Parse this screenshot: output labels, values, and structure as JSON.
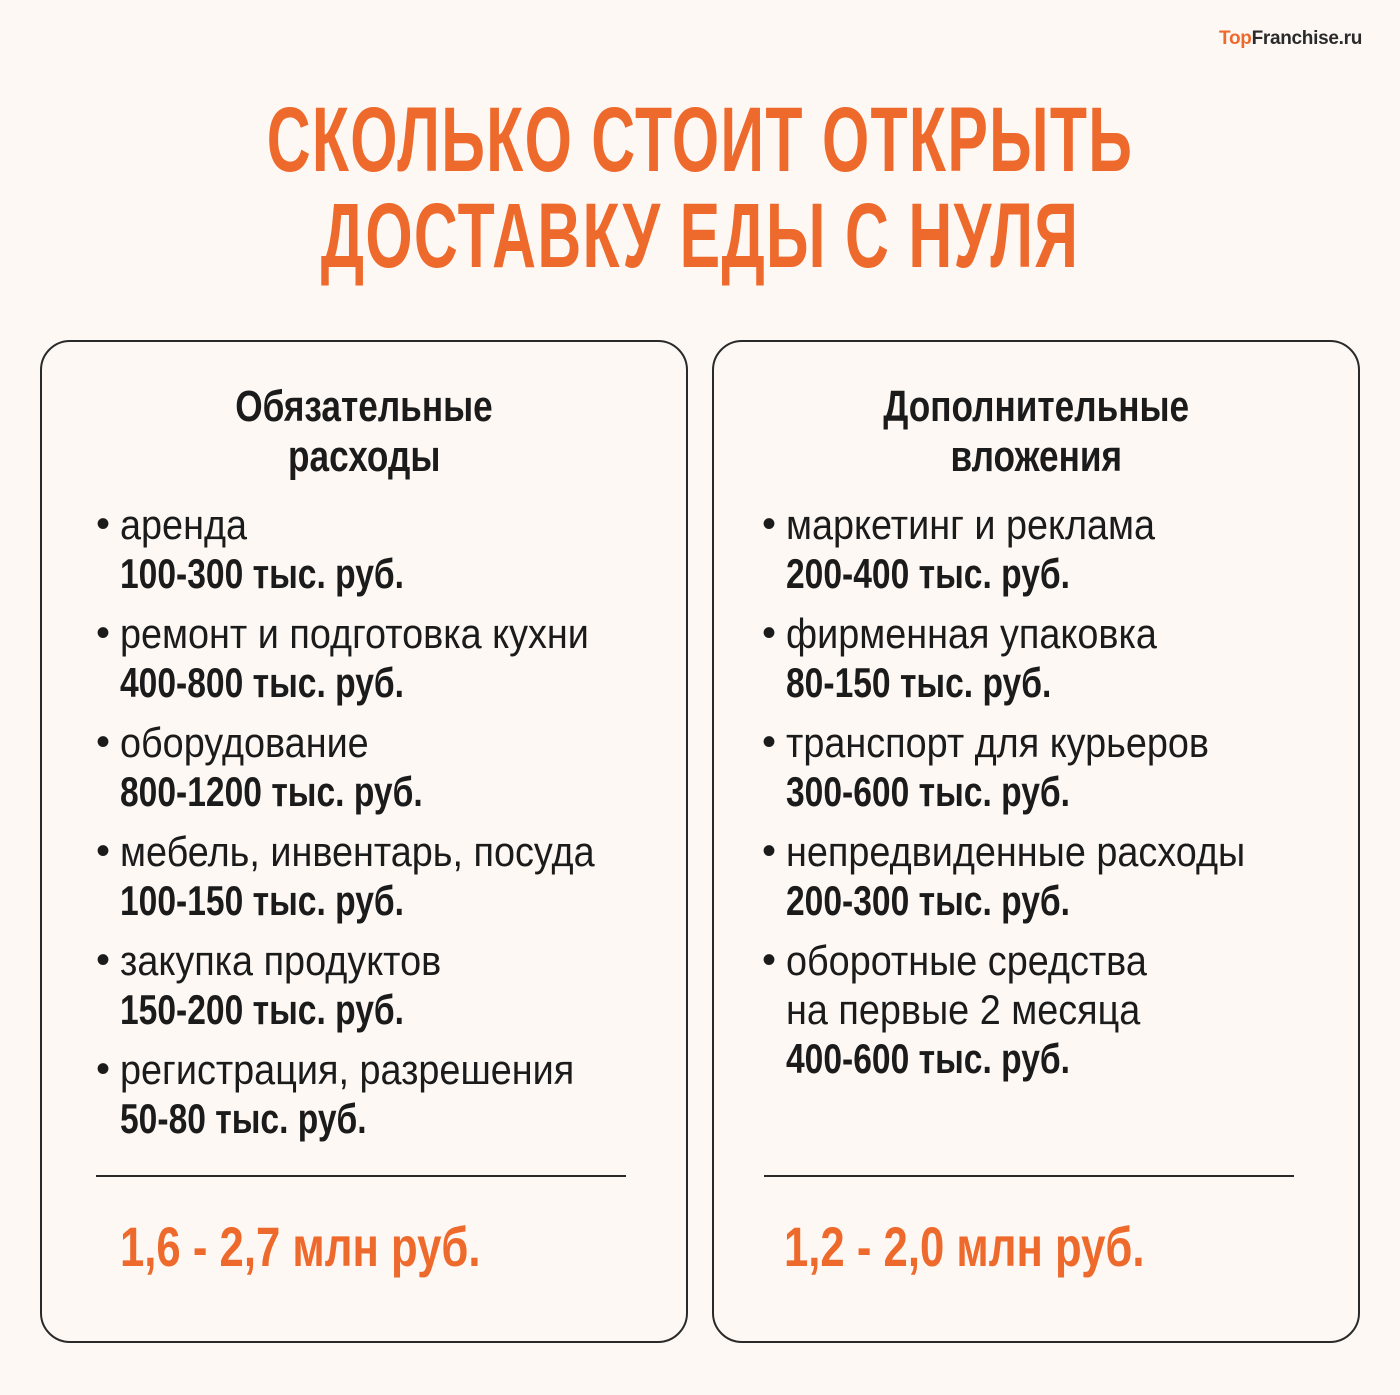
{
  "brand": {
    "part1": "Top",
    "part2": "Franchise.ru"
  },
  "title": {
    "line1": "СКОЛЬКО СТОИТ ОТКРЫТЬ",
    "line2": "ДОСТАВКУ ЕДЫ С НУЛЯ"
  },
  "colors": {
    "accent": "#ee6a2c",
    "background": "#fdf8f4",
    "text": "#1b1b1b"
  },
  "left": {
    "heading1": "Обязательные",
    "heading2": "расходы",
    "items": [
      {
        "label": "аренда",
        "value": "100-300 тыс. руб."
      },
      {
        "label": "ремонт и подготовка кухни",
        "value": "400-800 тыс. руб."
      },
      {
        "label": "оборудование",
        "value": "800-1200 тыс. руб."
      },
      {
        "label": "мебель, инвентарь, посуда",
        "value": "100-150 тыс. руб."
      },
      {
        "label": "закупка продуктов",
        "value": "150-200 тыс. руб."
      },
      {
        "label": "регистрация, разрешения",
        "value": "50-80 тыс. руб."
      }
    ],
    "total": "1,6 - 2,7 млн руб."
  },
  "right": {
    "heading1": "Дополнительные",
    "heading2": "вложения",
    "items": [
      {
        "label": "маркетинг и реклама",
        "value": "200-400 тыс. руб."
      },
      {
        "label": "фирменная упаковка",
        "value": "80-150 тыс. руб."
      },
      {
        "label": "транспорт для курьеров",
        "value": "300-600 тыс. руб."
      },
      {
        "label": "непредвиденные расходы",
        "value": "200-300 тыс. руб."
      },
      {
        "label": "оборотные средства",
        "label2": "на первые 2 месяца",
        "value": "400-600 тыс. руб."
      }
    ],
    "total": "1,2 - 2,0 млн руб."
  },
  "bullet": "•"
}
